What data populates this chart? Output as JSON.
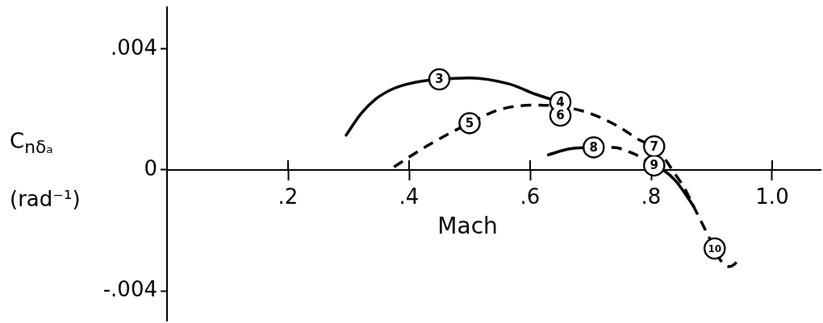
{
  "chart_data": {
    "type": "line",
    "xlabel": "Mach",
    "ylabel": "C$_{nδₐ}$ (rad⁻¹)",
    "xlim": [
      0,
      1.08
    ],
    "ylim": [
      -0.005,
      0.0054
    ],
    "xticks": [
      {
        "value": 0.2,
        "label": ".2"
      },
      {
        "value": 0.4,
        "label": ".4"
      },
      {
        "value": 0.6,
        "label": ".6"
      },
      {
        "value": 0.8,
        "label": ".8"
      },
      {
        "value": 1,
        "label": "1.0"
      }
    ],
    "yticks": [
      {
        "value": -0.004,
        "label": "-.004"
      },
      0,
      {
        "value": 0.004,
        "label": ".004"
      }
    ],
    "legend": false,
    "series": [
      {
        "color": "#000000",
        "line_style": "solid",
        "x": [
          0.296,
          0.32,
          0.345,
          0.375,
          0.41,
          0.45,
          0.5,
          0.565,
          0.61,
          0.65
        ],
        "values": [
          0.00115,
          0.00185,
          0.00235,
          0.0027,
          0.0029,
          0.003,
          0.00305,
          0.00285,
          0.0025,
          0.00225
        ]
      },
      {
        "color": "#000000",
        "line_style": "dashed",
        "x": [
          0.375,
          0.43,
          0.5,
          0.55,
          0.61,
          0.65,
          0.695,
          0.745,
          0.78,
          0.805,
          0.825,
          0.835,
          0.855,
          0.87,
          0.89,
          0.905,
          0.915,
          0.93,
          0.945
        ],
        "values": [
          0.0001,
          0.0008,
          0.00155,
          0.002,
          0.00215,
          0.0021,
          0.0019,
          0.00145,
          0.001,
          0.00075,
          0.0003,
          0,
          -0.0006,
          -0.0012,
          -0.002,
          -0.0026,
          -0.003,
          -0.0032,
          -0.003
        ]
      },
      {
        "color": "#000000",
        "line_style": "solid",
        "x": [
          0.63,
          0.665,
          0.705
        ],
        "values": [
          0.0005,
          0.0007,
          0.00075
        ]
      },
      {
        "color": "#000000",
        "line_style": "dashed",
        "x": [
          0.705,
          0.735,
          0.77,
          0.805
        ],
        "values": [
          0.00075,
          0.00075,
          0.00055,
          0.00015
        ]
      },
      {
        "color": "#000000",
        "line_style": "solid",
        "x": [
          0.805,
          0.82,
          0.84,
          0.855,
          0.87
        ],
        "values": [
          0.00015,
          0,
          -0.00035,
          -0.00075,
          -0.0012
        ]
      }
    ],
    "annotations": [
      {
        "text": "3",
        "x": 0.45,
        "y": 0.003
      },
      {
        "text": "4",
        "x": 0.65,
        "y": 0.00225
      },
      {
        "text": "5",
        "x": 0.5,
        "y": 0.00155
      },
      {
        "text": "6",
        "x": 0.65,
        "y": 0.0018
      },
      {
        "text": "7",
        "x": 0.805,
        "y": 0.00078
      },
      {
        "text": "8",
        "x": 0.705,
        "y": 0.00075
      },
      {
        "text": "9",
        "x": 0.805,
        "y": 0.00015
      },
      {
        "text": "10",
        "x": 0.905,
        "y": -0.0026
      }
    ]
  }
}
